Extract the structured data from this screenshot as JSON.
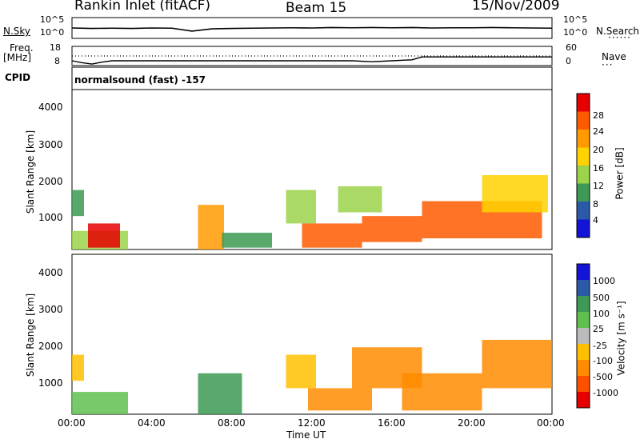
{
  "header": {
    "station": "Rankin Inlet (fitACF)",
    "beam": "Beam 15",
    "date": "15/Nov/2009"
  },
  "panels": {
    "nsky_label": "N.Sky",
    "nsearch_label": "N.Search",
    "nsky_ticks": [
      "10^5",
      "10^0"
    ],
    "freq_label_top": "Freq.",
    "freq_label_unit": "[MHz]",
    "freq_ticks": [
      "18",
      "8"
    ],
    "nave_label": "Nave",
    "nave_ticks": [
      "60",
      "0"
    ],
    "cpid_label": "CPID",
    "cpid_text": "normalsound (fast) -157"
  },
  "axes": {
    "ylabel": "Slant Range [km]",
    "yticks": [
      "4000",
      "3000",
      "2000",
      "1000"
    ],
    "xticks": [
      "00:00",
      "04:00",
      "08:00",
      "12:00",
      "16:00",
      "20:00",
      "00:00"
    ],
    "xlabel": "Time UT"
  },
  "colorbars": {
    "power": {
      "label": "Power [dB]",
      "ticks": [
        "28",
        "24",
        "20",
        "16",
        "12",
        "8",
        "4"
      ],
      "colors": [
        "#e60000",
        "#ff5a00",
        "#ff9a00",
        "#ffd200",
        "#9bd34a",
        "#3c9a54",
        "#2a5aa8",
        "#1414d8"
      ]
    },
    "velocity": {
      "label": "Velocity [m s⁻¹]",
      "ticks": [
        "1000",
        "500",
        "100",
        "25",
        "-25",
        "-100",
        "-500",
        "-1000"
      ],
      "colors": [
        "#1414d8",
        "#2a5aa8",
        "#3c9a54",
        "#5fc050",
        "#bbbbbb",
        "#ffc000",
        "#ff8c00",
        "#ff5000",
        "#e60000"
      ]
    }
  },
  "chart_data": [
    {
      "type": "line",
      "title": "N.Sky / N.Search",
      "xlabel": "Time UT",
      "series": [
        {
          "name": "N.Sky",
          "x": [
            0,
            1,
            2,
            3,
            4,
            5,
            6,
            7,
            8,
            9,
            10,
            11,
            12,
            13,
            14,
            15,
            16,
            17,
            18,
            19,
            20,
            21,
            22,
            23,
            24
          ],
          "values": [
            5.0,
            4.8,
            4.9,
            4.8,
            5.0,
            4.9,
            3.5,
            4.6,
            4.8,
            4.9,
            5.0,
            5.1,
            5.0,
            5.2,
            5.1,
            5.2,
            5.1,
            5.2,
            5.0,
            5.1,
            5.1,
            5.2,
            5.1,
            5.0,
            4.9
          ]
        }
      ],
      "ylim": [
        0,
        10
      ]
    },
    {
      "type": "line",
      "title": "Freq. / Nave",
      "series": [
        {
          "name": "Freq.",
          "x": [
            0,
            0.5,
            1,
            1.5,
            2,
            3,
            4,
            6,
            7,
            8,
            10,
            12,
            13,
            14,
            15,
            16,
            17,
            17.5,
            18,
            20,
            22,
            24
          ],
          "values": [
            10.5,
            9.5,
            8.8,
            9.8,
            10.5,
            10.5,
            10.5,
            10.5,
            10.5,
            10.5,
            10.5,
            10.5,
            10.5,
            10.5,
            10,
            10.5,
            11,
            12.5,
            12.5,
            12.5,
            12.5,
            12.5
          ]
        },
        {
          "name": "Nave",
          "x": [
            0,
            24
          ],
          "values": [
            30,
            30
          ]
        }
      ]
    },
    {
      "type": "heatmap",
      "title": "Power [dB]",
      "xlabel": "Time UT",
      "ylabel": "Slant Range [km]",
      "xlim": [
        0,
        24
      ],
      "ylim": [
        200,
        4500
      ],
      "zlim": [
        0,
        32
      ],
      "regions": [
        {
          "t0": 0.0,
          "t1": 0.6,
          "r0": 1100,
          "r1": 1800,
          "value": 10
        },
        {
          "t0": 0.0,
          "t1": 2.8,
          "r0": 200,
          "r1": 700,
          "value": 14
        },
        {
          "t0": 0.8,
          "t1": 2.4,
          "r0": 250,
          "r1": 900,
          "value": 28
        },
        {
          "t0": 6.3,
          "t1": 7.6,
          "r0": 200,
          "r1": 1400,
          "value": 22
        },
        {
          "t0": 7.5,
          "t1": 10.0,
          "r0": 250,
          "r1": 650,
          "value": 10
        },
        {
          "t0": 10.7,
          "t1": 12.2,
          "r0": 900,
          "r1": 1800,
          "value": 14
        },
        {
          "t0": 11.5,
          "t1": 14.5,
          "r0": 250,
          "r1": 900,
          "value": 26
        },
        {
          "t0": 13.3,
          "t1": 15.5,
          "r0": 1200,
          "r1": 1900,
          "value": 14
        },
        {
          "t0": 14.5,
          "t1": 17.5,
          "r0": 400,
          "r1": 1100,
          "value": 24
        },
        {
          "t0": 17.5,
          "t1": 23.5,
          "r0": 500,
          "r1": 1500,
          "value": 26
        },
        {
          "t0": 20.5,
          "t1": 23.8,
          "r0": 1200,
          "r1": 2200,
          "value": 16
        }
      ]
    },
    {
      "type": "heatmap",
      "title": "Velocity [m s⁻¹]",
      "xlabel": "Time UT",
      "ylabel": "Slant Range [km]",
      "xlim": [
        0,
        24
      ],
      "ylim": [
        200,
        4500
      ],
      "zlim": [
        -1000,
        1000
      ],
      "regions": [
        {
          "t0": 0.0,
          "t1": 2.8,
          "r0": 200,
          "r1": 800,
          "value": 25
        },
        {
          "t0": 0.0,
          "t1": 0.6,
          "r0": 1100,
          "r1": 1800,
          "value": -100
        },
        {
          "t0": 6.3,
          "t1": 8.5,
          "r0": 200,
          "r1": 1300,
          "value": 100
        },
        {
          "t0": 10.7,
          "t1": 12.2,
          "r0": 900,
          "r1": 1800,
          "value": -100
        },
        {
          "t0": 11.8,
          "t1": 15.0,
          "r0": 300,
          "r1": 900,
          "value": -300
        },
        {
          "t0": 14.0,
          "t1": 17.5,
          "r0": 900,
          "r1": 2000,
          "value": -150
        },
        {
          "t0": 16.5,
          "t1": 20.5,
          "r0": 300,
          "r1": 1300,
          "value": -500
        },
        {
          "t0": 20.5,
          "t1": 24.0,
          "r0": 900,
          "r1": 2200,
          "value": -400
        }
      ]
    }
  ]
}
